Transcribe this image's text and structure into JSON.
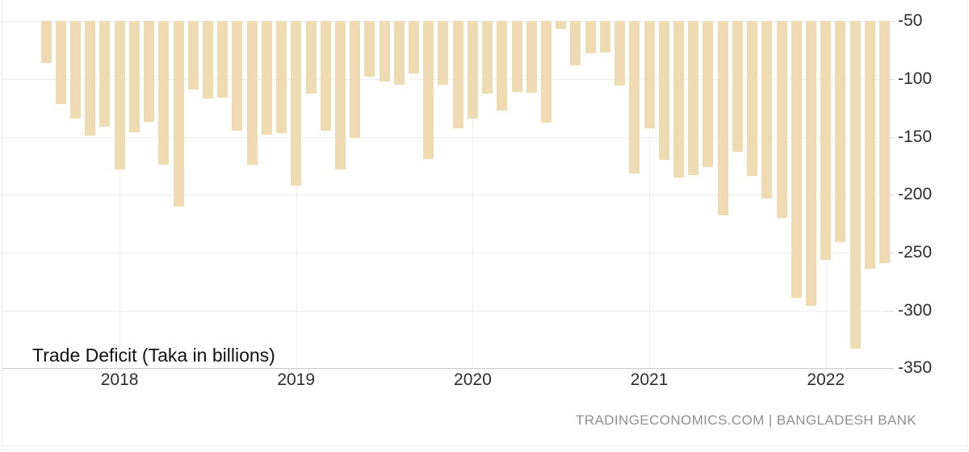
{
  "title": "Trade Deficit (Taka in billions)",
  "attribution": "TRADINGECONOMICS.COM | BANGLADESH BANK",
  "colors": {
    "bar": "#efdbb2",
    "gridline": "#eeeeee",
    "axis_line": "#c9c9c9",
    "tick_label": "#2d2d2d",
    "title": "#111111",
    "attribution": "#8f8f8f",
    "background": "#ffffff"
  },
  "chart_data": {
    "type": "bar",
    "title": "Trade Deficit (Taka in billions)",
    "ylabel": "Taka in billions",
    "xlabel": "",
    "grid": true,
    "legend_position": "none",
    "ylim": [
      -350,
      -50
    ],
    "yticks": [
      -50,
      -100,
      -150,
      -200,
      -250,
      -300,
      -350
    ],
    "ytick_labels": [
      "-50",
      "-100",
      "-150",
      "-200",
      "-250",
      "-300",
      "-350"
    ],
    "year_ticks": [
      {
        "label": "2018",
        "month": "2018-01"
      },
      {
        "label": "2019",
        "month": "2019-01"
      },
      {
        "label": "2020",
        "month": "2020-01"
      },
      {
        "label": "2021",
        "month": "2021-01"
      },
      {
        "label": "2022",
        "month": "2022-01"
      }
    ],
    "x": [
      "2017-08",
      "2017-09",
      "2017-10",
      "2017-11",
      "2017-12",
      "2018-01",
      "2018-02",
      "2018-03",
      "2018-04",
      "2018-05",
      "2018-06",
      "2018-07",
      "2018-08",
      "2018-09",
      "2018-10",
      "2018-11",
      "2018-12",
      "2019-01",
      "2019-02",
      "2019-03",
      "2019-04",
      "2019-05",
      "2019-06",
      "2019-07",
      "2019-08",
      "2019-09",
      "2019-10",
      "2019-11",
      "2019-12",
      "2020-01",
      "2020-02",
      "2020-03",
      "2020-04",
      "2020-05",
      "2020-06",
      "2020-07",
      "2020-08",
      "2020-09",
      "2020-10",
      "2020-11",
      "2020-12",
      "2021-01",
      "2021-02",
      "2021-03",
      "2021-04",
      "2021-05",
      "2021-06",
      "2021-07",
      "2021-08",
      "2021-09",
      "2021-10",
      "2021-11",
      "2021-12",
      "2022-01",
      "2022-02",
      "2022-03",
      "2022-04",
      "2022-05"
    ],
    "values": [
      -86,
      -122,
      -134,
      -149,
      -141,
      -178,
      -146,
      -137,
      -174,
      -210,
      -109,
      -117,
      -116,
      -145,
      -174,
      -148,
      -147,
      -192,
      -113,
      -145,
      -178,
      -151,
      -98,
      -102,
      -105,
      -95,
      -169,
      -105,
      -143,
      -134,
      -113,
      -127,
      -111,
      -112,
      -138,
      -57,
      -88,
      -78,
      -77,
      -106,
      -182,
      -143,
      -170,
      -185,
      -183,
      -176,
      -218,
      -163,
      -184,
      -203,
      -220,
      -289,
      -296,
      -256,
      -241,
      -333,
      -264,
      -259
    ]
  }
}
